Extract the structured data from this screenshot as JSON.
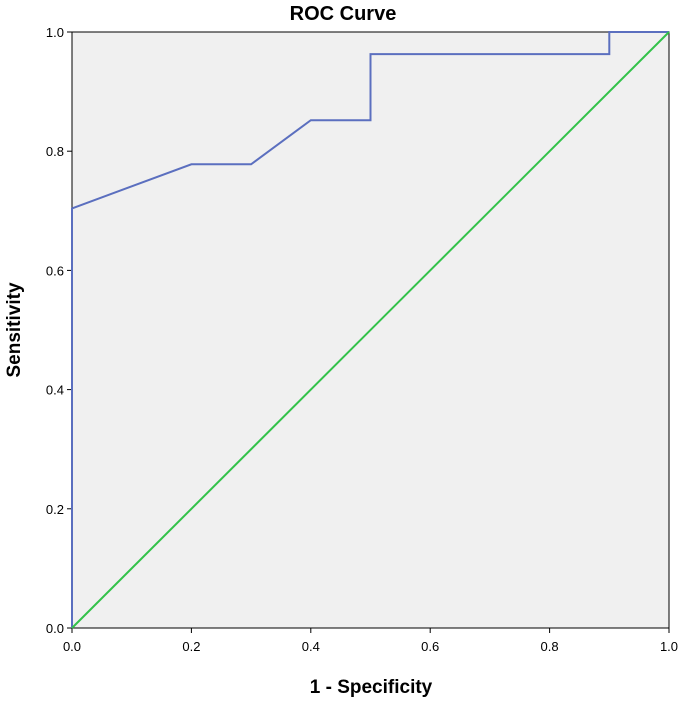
{
  "chart_data": {
    "type": "line",
    "title": "ROC Curve",
    "xlabel": "1 - Specificity",
    "ylabel": "Sensitivity",
    "xlim": [
      0.0,
      1.0
    ],
    "ylim": [
      0.0,
      1.0
    ],
    "x_ticks": [
      "0.0",
      "0.2",
      "0.4",
      "0.6",
      "0.8",
      "1.0"
    ],
    "y_ticks": [
      "0.0",
      "0.2",
      "0.4",
      "0.6",
      "0.8",
      "1.0"
    ],
    "grid": false,
    "legend": "none",
    "series": [
      {
        "style": "step",
        "color": "#5b6fbf",
        "x": [
          0.0,
          0.0,
          0.2,
          0.3,
          0.4,
          0.5,
          0.5,
          0.9,
          0.9,
          1.0
        ],
        "y": [
          0.0,
          0.704,
          0.778,
          0.778,
          0.852,
          0.852,
          0.963,
          0.963,
          1.0,
          1.0
        ]
      },
      {
        "style": "reference",
        "color": "#33c24a",
        "x": [
          0.0,
          1.0
        ],
        "y": [
          0.0,
          1.0
        ]
      }
    ],
    "plot_background": "#f0f0f0"
  }
}
